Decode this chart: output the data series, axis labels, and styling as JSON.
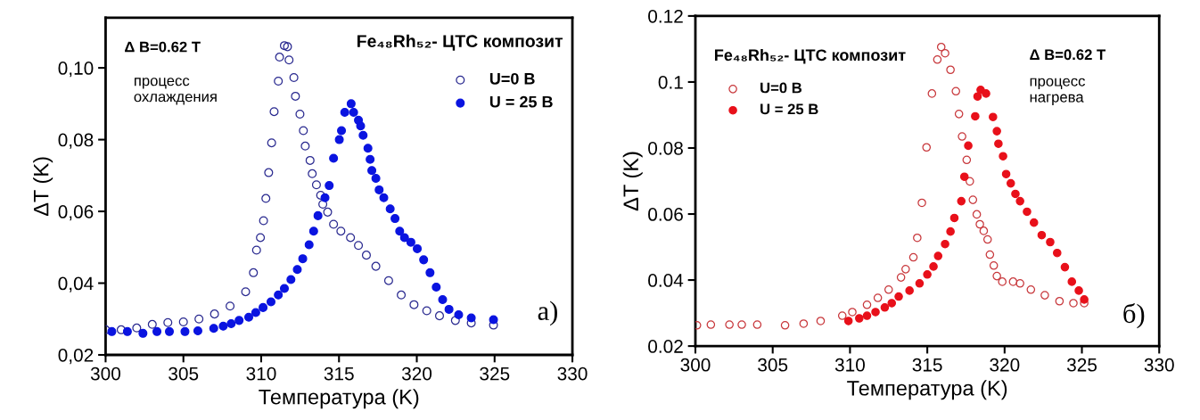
{
  "chart_data": [
    {
      "type": "scatter",
      "xlabel": "Температура (K)",
      "ylabel": "ΔT (K)",
      "annotations": [
        "Fe₄₈Rh₅₂- ЦТС композит",
        "Δ B=0.62 T",
        "процесс\nохлаждения",
        "а)"
      ],
      "xlim": [
        300,
        330
      ],
      "xticks": [
        300,
        305,
        310,
        315,
        320,
        325,
        330
      ],
      "ylim": [
        0.02,
        0.114
      ],
      "yticks": [
        {
          "value": 0.02,
          "label": "0,02"
        },
        {
          "value": 0.04,
          "label": "0,04"
        },
        {
          "value": 0.06,
          "label": "0,06"
        },
        {
          "value": 0.08,
          "label": "0,08"
        },
        {
          "value": 0.1,
          "label": "0,10"
        }
      ],
      "legend": "top right",
      "marker": "circle",
      "grid": false,
      "series": [
        {
          "name": "U=0 B",
          "color": "#2a2a90",
          "x": [
            300,
            301,
            302,
            303,
            304,
            305,
            306,
            307,
            308,
            309,
            309.5,
            309.7,
            309.95,
            310.15,
            310.3,
            310.48,
            310.67,
            310.83,
            311.1,
            311.18,
            311.49,
            311.69,
            311.79,
            312.1,
            312.2,
            312.49,
            312.71,
            312.83,
            313.14,
            313.28,
            313.55,
            313.82,
            313.96,
            314.27,
            314.65,
            315.12,
            315.74,
            316.25,
            316.76,
            317.37,
            318.19,
            319.0,
            319.82,
            320.64,
            321.46,
            322.48,
            323.5,
            324.93
          ],
          "values": [
            0.027,
            0.027,
            0.0275,
            0.0285,
            0.029,
            0.0292,
            0.03,
            0.0314,
            0.0336,
            0.0376,
            0.0429,
            0.0492,
            0.0527,
            0.0574,
            0.0636,
            0.0708,
            0.0791,
            0.0878,
            0.0963,
            0.103,
            0.1062,
            0.1059,
            0.1022,
            0.0973,
            0.0921,
            0.0871,
            0.0825,
            0.0782,
            0.0742,
            0.0705,
            0.0674,
            0.0645,
            0.062,
            0.0598,
            0.0564,
            0.0545,
            0.0527,
            0.0505,
            0.0478,
            0.0447,
            0.0407,
            0.0367,
            0.034,
            0.0323,
            0.0309,
            0.0296,
            0.0289,
            0.0283
          ]
        },
        {
          "name": "U = 25 B",
          "color": "#0a14e0",
          "x": [
            300.4,
            301.4,
            302.4,
            303.3,
            304.1,
            305.1,
            305.93,
            306.95,
            307.56,
            308.07,
            308.58,
            309.2,
            309.65,
            310.12,
            310.63,
            311.1,
            311.49,
            311.91,
            312.32,
            312.67,
            313.08,
            313.37,
            313.65,
            314.1,
            314.37,
            314.65,
            315.02,
            315.16,
            315.37,
            315.78,
            315.94,
            316.25,
            316.39,
            316.55,
            316.86,
            317.0,
            317.11,
            317.37,
            317.58,
            317.88,
            318.29,
            318.6,
            318.9,
            319.21,
            319.62,
            320.03,
            320.44,
            320.85,
            321.25,
            321.66,
            322.07,
            322.69,
            323.5,
            324.93
          ],
          "values": [
            0.0265,
            0.0265,
            0.026,
            0.0265,
            0.0265,
            0.0265,
            0.0267,
            0.0274,
            0.028,
            0.0287,
            0.0296,
            0.0305,
            0.0318,
            0.0332,
            0.0348,
            0.0367,
            0.0385,
            0.041,
            0.0438,
            0.0468,
            0.0507,
            0.0545,
            0.0588,
            0.0638,
            0.0672,
            0.0748,
            0.08,
            0.0825,
            0.0876,
            0.09,
            0.0876,
            0.0854,
            0.0838,
            0.0812,
            0.0776,
            0.0745,
            0.0714,
            0.0692,
            0.066,
            0.0638,
            0.0607,
            0.058,
            0.0545,
            0.0527,
            0.0514,
            0.0496,
            0.0465,
            0.0429,
            0.0389,
            0.0354,
            0.0327,
            0.0312,
            0.0303,
            0.0298
          ]
        }
      ]
    },
    {
      "type": "scatter",
      "xlabel": "Температура (K)",
      "ylabel": "ΔT (K)",
      "annotations": [
        "Fe₄₈Rh₅₂- ЦТС композит",
        "Δ B=0.62 T",
        "процесс\nнагрева",
        "б)"
      ],
      "xlim": [
        300,
        330
      ],
      "xticks": [
        300,
        305,
        310,
        315,
        320,
        325,
        330
      ],
      "ylim": [
        0.02,
        0.12
      ],
      "yticks": [
        0.02,
        0.04,
        0.06,
        0.08,
        0.1,
        0.12
      ],
      "legend": "top left",
      "marker": "circle",
      "grid": false,
      "series": [
        {
          "name": "U=0 B",
          "color": "#c8383c",
          "x": [
            300.1,
            301,
            302.2,
            303,
            304,
            305.8,
            307,
            308.1,
            309.5,
            310.15,
            311.1,
            311.8,
            312.5,
            313.3,
            313.6,
            314.1,
            314.35,
            314.65,
            314.95,
            315.3,
            315.65,
            315.9,
            316.15,
            316.5,
            316.85,
            317.05,
            317.25,
            317.55,
            317.75,
            317.95,
            318.2,
            318.4,
            318.65,
            318.9,
            319.05,
            319.3,
            319.5,
            319.85,
            320.55,
            321.0,
            321.7,
            322.6,
            323.55,
            324.45,
            325.15
          ],
          "values": [
            0.0263,
            0.0265,
            0.0265,
            0.0265,
            0.0265,
            0.0263,
            0.0268,
            0.0276,
            0.0292,
            0.0303,
            0.0325,
            0.0346,
            0.0371,
            0.0408,
            0.0433,
            0.0469,
            0.0528,
            0.0634,
            0.0802,
            0.0965,
            0.1068,
            0.1106,
            0.1087,
            0.1037,
            0.0972,
            0.0903,
            0.0835,
            0.0764,
            0.0699,
            0.0643,
            0.0599,
            0.0569,
            0.0549,
            0.0523,
            0.0477,
            0.0444,
            0.0412,
            0.0395,
            0.0395,
            0.039,
            0.0371,
            0.0354,
            0.0336,
            0.033,
            0.033
          ]
        },
        {
          "name": "U = 25 B",
          "color": "#e8101a",
          "x": [
            309.9,
            310.6,
            311.1,
            311.65,
            312.25,
            312.7,
            313.15,
            313.85,
            314.5,
            315.0,
            315.4,
            315.7,
            316.15,
            316.5,
            316.75,
            317.2,
            317.4,
            317.65,
            318.1,
            318.25,
            318.45,
            318.8,
            319.25,
            319.5,
            319.6,
            319.9,
            320.1,
            320.4,
            320.7,
            321.0,
            321.45,
            321.9,
            322.4,
            322.95,
            323.4,
            323.9,
            324.35,
            324.8,
            325.15
          ],
          "values": [
            0.0276,
            0.0284,
            0.0292,
            0.0303,
            0.0317,
            0.033,
            0.035,
            0.0368,
            0.039,
            0.0417,
            0.0441,
            0.0473,
            0.0509,
            0.0547,
            0.0588,
            0.0639,
            0.0713,
            0.0807,
            0.0896,
            0.0956,
            0.0976,
            0.0965,
            0.0894,
            0.0851,
            0.0813,
            0.0775,
            0.0721,
            0.0693,
            0.0661,
            0.0639,
            0.0607,
            0.0574,
            0.0536,
            0.0515,
            0.0482,
            0.0439,
            0.0395,
            0.0368,
            0.0341
          ]
        }
      ]
    }
  ]
}
